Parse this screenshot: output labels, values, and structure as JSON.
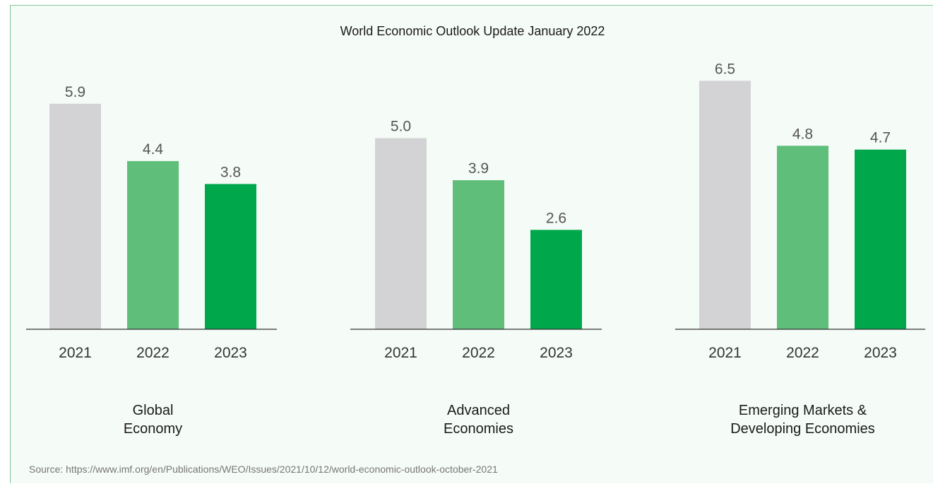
{
  "chart_data": {
    "type": "bar",
    "title": "World Economic Outlook Update January 2022",
    "categories": [
      "2021",
      "2022",
      "2023"
    ],
    "groups": [
      {
        "label_lines": [
          "Global",
          "Economy"
        ],
        "values": [
          5.9,
          4.4,
          3.8
        ],
        "labels": [
          "5.9",
          "4.4",
          "3.8"
        ]
      },
      {
        "label_lines": [
          "Advanced",
          "Economies"
        ],
        "values": [
          5.0,
          3.9,
          2.6
        ],
        "labels": [
          "5.0",
          "3.9",
          "2.6"
        ]
      },
      {
        "label_lines": [
          "Emerging Markets &",
          "Developing Economies"
        ],
        "values": [
          6.5,
          4.8,
          4.7
        ],
        "labels": [
          "6.5",
          "4.8",
          "4.7"
        ]
      }
    ],
    "ylim": [
      0,
      7
    ],
    "colors": [
      "#d3d3d5",
      "#5fbf7a",
      "#00a84b"
    ],
    "grid": false,
    "xlabel": "",
    "ylabel": "",
    "source": "Source: https://www.imf.org/en/Publications/WEO/Issues/2021/10/12/world-economic-outlook-october-2021"
  }
}
